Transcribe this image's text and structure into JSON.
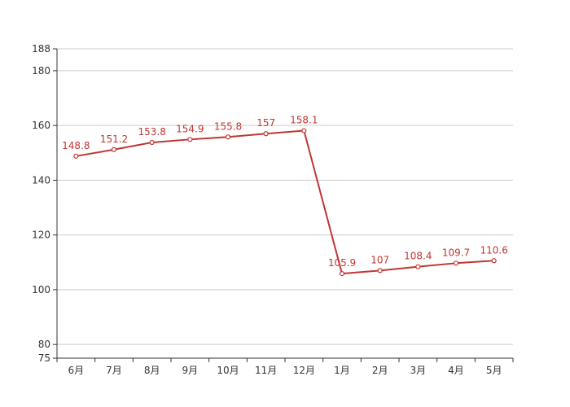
{
  "chart_data": {
    "type": "line",
    "categories": [
      "6月",
      "7月",
      "8月",
      "9月",
      "10月",
      "11月",
      "12月",
      "1月",
      "2月",
      "3月",
      "4月",
      "5月"
    ],
    "series": [
      {
        "values": [
          148.8,
          151.2,
          153.8,
          154.9,
          155.8,
          157,
          158.1,
          105.9,
          107,
          108.4,
          109.7,
          110.6
        ],
        "color": "#c23531"
      }
    ],
    "ylim": [
      75,
      188
    ],
    "yticks": [
      75,
      80,
      100,
      120,
      140,
      160,
      180,
      188
    ],
    "grid": true,
    "data_labels": true,
    "title": "",
    "xlabel": "",
    "ylabel": ""
  }
}
